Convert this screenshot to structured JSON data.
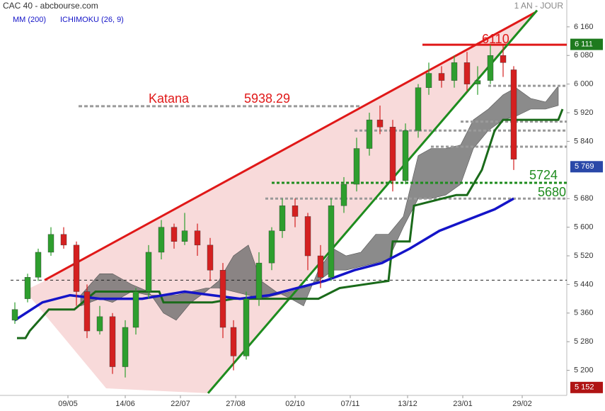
{
  "chart_data": {
    "type": "candlestick",
    "title": "CAC 40 - abcbourse.com",
    "period": "1 AN - JOUR",
    "xlim": [
      0,
      262
    ],
    "ylim": [
      5116,
      6235
    ],
    "xticks": [
      {
        "value": 27,
        "label": "09/05"
      },
      {
        "value": 54,
        "label": "14/06"
      },
      {
        "value": 80,
        "label": "22/07"
      },
      {
        "value": 106,
        "label": "27/08"
      },
      {
        "value": 134,
        "label": "02/10"
      },
      {
        "value": 160,
        "label": "07/11"
      },
      {
        "value": 187,
        "label": "13/12"
      },
      {
        "value": 213,
        "label": "23/01"
      },
      {
        "value": 241,
        "label": "29/02"
      }
    ],
    "yticks": [
      {
        "value": 6160,
        "label": "6 160"
      },
      {
        "value": 6080,
        "label": "6 080"
      },
      {
        "value": 6000,
        "label": "6 000"
      },
      {
        "value": 5920,
        "label": "5 920"
      },
      {
        "value": 5840,
        "label": "5 840"
      },
      {
        "value": 5680,
        "label": "5 680"
      },
      {
        "value": 5600,
        "label": "5 600"
      },
      {
        "value": 5520,
        "label": "5 520"
      },
      {
        "value": 5440,
        "label": "5 440"
      },
      {
        "value": 5360,
        "label": "5 360"
      },
      {
        "value": 5280,
        "label": "5 280"
      },
      {
        "value": 5200,
        "label": "5 200"
      }
    ],
    "candles": {
      "up_color": "#2e9e2e",
      "down_color": "#d42020",
      "x": [
        2,
        8,
        13,
        19,
        25,
        31,
        36,
        42,
        48,
        54,
        59,
        65,
        71,
        77,
        82,
        88,
        94,
        100,
        105,
        111,
        117,
        123,
        128,
        134,
        140,
        146,
        151,
        157,
        163,
        169,
        174,
        180,
        186,
        192,
        197,
        203,
        209,
        215,
        220,
        226,
        232,
        237
      ],
      "open": [
        5340,
        5400,
        5460,
        5530,
        5580,
        5550,
        5420,
        5310,
        5350,
        5210,
        5320,
        5420,
        5530,
        5600,
        5560,
        5590,
        5550,
        5480,
        5320,
        5240,
        5400,
        5500,
        5590,
        5660,
        5630,
        5520,
        5460,
        5660,
        5720,
        5820,
        5900,
        5880,
        5730,
        5870,
        5990,
        6030,
        6010,
        6060,
        6000,
        6010,
        6080,
        6040
      ],
      "high": [
        5390,
        5470,
        5540,
        5600,
        5600,
        5560,
        5440,
        5380,
        5360,
        5340,
        5430,
        5550,
        5620,
        5610,
        5640,
        5610,
        5570,
        5500,
        5340,
        5420,
        5530,
        5600,
        5680,
        5680,
        5640,
        5550,
        5680,
        5740,
        5850,
        5920,
        5940,
        5900,
        5890,
        6000,
        6060,
        6050,
        6080,
        6090,
        6050,
        6110,
        6110,
        6050
      ],
      "low": [
        5330,
        5390,
        5450,
        5520,
        5540,
        5380,
        5290,
        5300,
        5190,
        5180,
        5300,
        5400,
        5510,
        5540,
        5550,
        5520,
        5450,
        5290,
        5200,
        5230,
        5380,
        5480,
        5570,
        5600,
        5480,
        5430,
        5450,
        5640,
        5700,
        5800,
        5860,
        5700,
        5720,
        5850,
        5970,
        5990,
        5990,
        5980,
        5970,
        6000,
        6020,
        5760
      ],
      "close": [
        5370,
        5460,
        5530,
        5580,
        5550,
        5420,
        5310,
        5350,
        5210,
        5320,
        5420,
        5530,
        5600,
        5560,
        5590,
        5550,
        5480,
        5320,
        5240,
        5400,
        5500,
        5590,
        5660,
        5630,
        5520,
        5460,
        5660,
        5720,
        5820,
        5900,
        5880,
        5730,
        5870,
        5990,
        6030,
        6010,
        6060,
        6000,
        6010,
        6080,
        6060,
        5790
      ]
    },
    "mm200": {
      "name": "MM (200)",
      "color": "#1414c8",
      "x": [
        2,
        15,
        28,
        42,
        62,
        82,
        95,
        108,
        122,
        135,
        148,
        162,
        175,
        188,
        202,
        215,
        228,
        237
      ],
      "values": [
        5340,
        5390,
        5410,
        5400,
        5400,
        5420,
        5410,
        5400,
        5410,
        5430,
        5450,
        5480,
        5500,
        5540,
        5590,
        5620,
        5650,
        5680
      ]
    },
    "ichimoku": {
      "name": "ICHIMOKU (26, 9)",
      "color": "#6e6e6e",
      "kijun_color": "#1a6a1a",
      "x": [
        33,
        42,
        48,
        57,
        65,
        72,
        78,
        85,
        92,
        98,
        105,
        112,
        118,
        125,
        132,
        138,
        145,
        152,
        158,
        165,
        172,
        178,
        185,
        192,
        198,
        205,
        212,
        218,
        225,
        232,
        238,
        245,
        252,
        258
      ],
      "span_a": [
        5410,
        5470,
        5470,
        5440,
        5420,
        5360,
        5340,
        5390,
        5420,
        5450,
        5520,
        5550,
        5450,
        5420,
        5400,
        5380,
        5480,
        5540,
        5520,
        5530,
        5580,
        5580,
        5630,
        5800,
        5820,
        5820,
        5830,
        5900,
        5930,
        5970,
        5990,
        5960,
        5950,
        5995
      ],
      "span_b": [
        5380,
        5400,
        5390,
        5420,
        5410,
        5410,
        5410,
        5420,
        5430,
        5430,
        5420,
        5410,
        5400,
        5410,
        5420,
        5430,
        5450,
        5480,
        5480,
        5490,
        5500,
        5510,
        5600,
        5680,
        5680,
        5690,
        5720,
        5820,
        5870,
        5900,
        5910,
        5930,
        5930,
        5940
      ],
      "kijun_x": [
        3,
        7,
        9,
        18,
        30,
        40,
        70,
        72,
        95,
        105,
        145,
        155,
        178,
        180,
        188,
        190,
        210,
        215,
        222,
        228,
        232,
        236,
        258,
        260
      ],
      "kijun": [
        5290,
        5290,
        5310,
        5370,
        5370,
        5420,
        5420,
        5390,
        5390,
        5400,
        5400,
        5430,
        5450,
        5560,
        5560,
        5660,
        5690,
        5690,
        5760,
        5870,
        5900,
        5900,
        5900,
        5930
      ]
    },
    "trend_lines": [
      {
        "color": "#e01818",
        "x": [
          16,
          247
        ],
        "values": [
          5452,
          6200
        ]
      },
      {
        "color": "#1e8c1e",
        "x": [
          93,
          248
        ],
        "values": [
          5136,
          6206
        ]
      }
    ],
    "levels": [
      {
        "value": 6110,
        "x": [
          194,
          262
        ],
        "color": "#e01818",
        "style": "solid",
        "text_color": "#e01818"
      },
      {
        "name": "Katana",
        "value": 5938.29,
        "x": [
          32,
          165
        ],
        "color": "#9a9a9a",
        "style": "dashed",
        "text_color": "#e01818"
      },
      {
        "value": 5724,
        "x": [
          123,
          262
        ],
        "color": "#1e8c1e",
        "style": "dotted",
        "text_color": "#1e8c1e"
      },
      {
        "value": 5680,
        "x": [
          120,
          262
        ],
        "color": "#9a9a9a",
        "style": "dotted",
        "text_color": "#1e8c1e"
      },
      {
        "value": 5452,
        "x": [
          0,
          262
        ],
        "color": "#222222",
        "style": "thin"
      },
      {
        "value": 5995,
        "x": [
          225,
          262
        ],
        "color": "#9a9a9a",
        "style": "dotted"
      },
      {
        "value": 5895,
        "x": [
          212,
          262
        ],
        "color": "#9a9a9a",
        "style": "dotted"
      },
      {
        "value": 5870,
        "x": [
          162,
          262
        ],
        "color": "#9a9a9a",
        "style": "dotted"
      },
      {
        "value": 5825,
        "x": [
          198,
          262
        ],
        "color": "#9a9a9a",
        "style": "dotted"
      }
    ],
    "price_tags": [
      {
        "value": 6111,
        "label": "6 111",
        "color": "#1e7a1e"
      },
      {
        "value": 5769,
        "label": "5 769",
        "color": "#2a48a8"
      },
      {
        "value": 5152,
        "label": "5 152",
        "color": "#b01414"
      }
    ]
  }
}
